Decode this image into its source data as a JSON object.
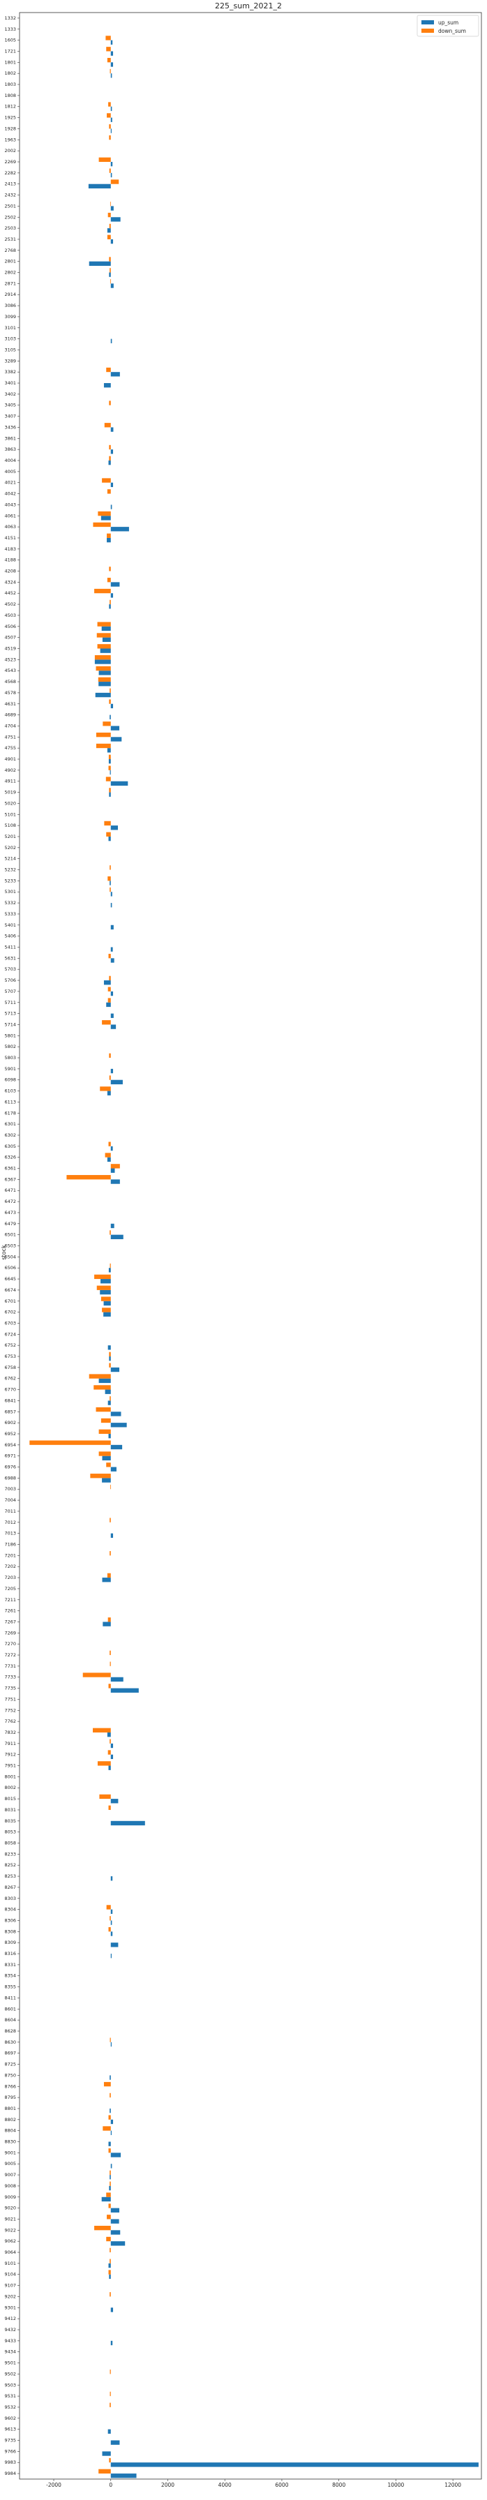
{
  "chart_data": {
    "type": "bar",
    "orientation": "horizontal",
    "title": "225_sum_2021_2",
    "xlabel": "",
    "ylabel": "stock",
    "xlim": [
      -3200,
      13000
    ],
    "xticks": [
      -2000,
      0,
      2000,
      4000,
      6000,
      8000,
      10000,
      12000
    ],
    "grid": false,
    "legend_position": "top-right",
    "series": [
      {
        "name": "up_sum",
        "color": "#1f77b4"
      },
      {
        "name": "down_sum",
        "color": "#ff7f0e"
      }
    ],
    "categories": [
      "1332",
      "1333",
      "1605",
      "1721",
      "1801",
      "1802",
      "1803",
      "1808",
      "1812",
      "1925",
      "1928",
      "1963",
      "2002",
      "2269",
      "2282",
      "2413",
      "2432",
      "2501",
      "2502",
      "2503",
      "2531",
      "2768",
      "2801",
      "2802",
      "2871",
      "2914",
      "3086",
      "3099",
      "3101",
      "3103",
      "3105",
      "3289",
      "3382",
      "3401",
      "3402",
      "3405",
      "3407",
      "3436",
      "3861",
      "3863",
      "4004",
      "4005",
      "4021",
      "4042",
      "4043",
      "4061",
      "4063",
      "4151",
      "4183",
      "4188",
      "4208",
      "4324",
      "4452",
      "4502",
      "4503",
      "4506",
      "4507",
      "4519",
      "4523",
      "4543",
      "4568",
      "4578",
      "4631",
      "4689",
      "4704",
      "4751",
      "4755",
      "4901",
      "4902",
      "4911",
      "5019",
      "5020",
      "5101",
      "5108",
      "5201",
      "5202",
      "5214",
      "5232",
      "5233",
      "5301",
      "5332",
      "5333",
      "5401",
      "5406",
      "5411",
      "5631",
      "5703",
      "5706",
      "5707",
      "5711",
      "5713",
      "5714",
      "5801",
      "5802",
      "5803",
      "5901",
      "6098",
      "6103",
      "6113",
      "6178",
      "6301",
      "6302",
      "6305",
      "6326",
      "6361",
      "6367",
      "6471",
      "6472",
      "6473",
      "6479",
      "6501",
      "6503",
      "6504",
      "6506",
      "6645",
      "6674",
      "6701",
      "6702",
      "6703",
      "6724",
      "6752",
      "6753",
      "6758",
      "6762",
      "6770",
      "6841",
      "6857",
      "6902",
      "6952",
      "6954",
      "6971",
      "6976",
      "6988",
      "7003",
      "7004",
      "7011",
      "7012",
      "7013",
      "7186",
      "7201",
      "7202",
      "7203",
      "7205",
      "7211",
      "7261",
      "7267",
      "7269",
      "7270",
      "7272",
      "7731",
      "7733",
      "7735",
      "7751",
      "7752",
      "7762",
      "7832",
      "7911",
      "7912",
      "7951",
      "8001",
      "8002",
      "8015",
      "8031",
      "8035",
      "8053",
      "8058",
      "8233",
      "8252",
      "8253",
      "8267",
      "8303",
      "8304",
      "8306",
      "8308",
      "8309",
      "8316",
      "8331",
      "8354",
      "8355",
      "8411",
      "8601",
      "8604",
      "8628",
      "8630",
      "8697",
      "8725",
      "8750",
      "8766",
      "8795",
      "8801",
      "8802",
      "8804",
      "8830",
      "9001",
      "9005",
      "9007",
      "9008",
      "9009",
      "9020",
      "9021",
      "9022",
      "9062",
      "9064",
      "9101",
      "9104",
      "9107",
      "9202",
      "9301",
      "9412",
      "9432",
      "9433",
      "9434",
      "9501",
      "9502",
      "9503",
      "9531",
      "9532",
      "9602",
      "9613",
      "9735",
      "9766",
      "9983",
      "9984"
    ],
    "up_sum": [
      0,
      0,
      60,
      80,
      80,
      40,
      0,
      0,
      40,
      50,
      30,
      0,
      0,
      60,
      40,
      -780,
      0,
      100,
      340,
      -120,
      80,
      0,
      -760,
      -60,
      100,
      0,
      0,
      0,
      0,
      40,
      0,
      0,
      320,
      -240,
      0,
      0,
      0,
      90,
      0,
      80,
      -80,
      0,
      80,
      0,
      40,
      -340,
      640,
      -140,
      0,
      0,
      0,
      310,
      80,
      -60,
      0,
      -320,
      -290,
      -370,
      -560,
      -420,
      -430,
      -540,
      80,
      -40,
      300,
      380,
      -120,
      -70,
      -30,
      600,
      -60,
      0,
      0,
      250,
      -80,
      0,
      0,
      0,
      -40,
      50,
      40,
      0,
      100,
      0,
      70,
      120,
      0,
      -240,
      80,
      -160,
      100,
      180,
      0,
      0,
      0,
      80,
      420,
      -120,
      0,
      0,
      0,
      0,
      70,
      -120,
      140,
      320,
      0,
      0,
      0,
      120,
      440,
      0,
      0,
      -70,
      -360,
      -380,
      -250,
      -260,
      0,
      0,
      -100,
      -60,
      300,
      -420,
      -200,
      -100,
      360,
      560,
      -80,
      400,
      -300,
      200,
      -310,
      0,
      0,
      0,
      0,
      80,
      0,
      0,
      0,
      -300,
      0,
      0,
      0,
      -280,
      0,
      0,
      0,
      0,
      440,
      980,
      0,
      0,
      0,
      -120,
      80,
      80,
      -80,
      0,
      0,
      260,
      0,
      1200,
      0,
      0,
      0,
      0,
      60,
      0,
      0,
      60,
      40,
      60,
      260,
      30,
      0,
      0,
      0,
      0,
      0,
      0,
      0,
      30,
      0,
      0,
      -40,
      0,
      0,
      -40,
      80,
      30,
      -80,
      350,
      40,
      -40,
      -60,
      -320,
      300,
      290,
      330,
      500,
      0,
      -80,
      -60,
      0,
      0,
      80,
      0,
      0,
      60,
      0,
      0,
      0,
      0,
      0,
      0,
      0,
      -100,
      310,
      -300,
      12900,
      900
    ],
    "down_sum": [
      0,
      0,
      -180,
      -160,
      -120,
      -30,
      0,
      0,
      -90,
      -140,
      -60,
      -60,
      0,
      -420,
      -50,
      280,
      0,
      -20,
      -100,
      -50,
      -120,
      0,
      -60,
      -40,
      -20,
      0,
      0,
      0,
      0,
      0,
      0,
      0,
      -160,
      0,
      0,
      -60,
      0,
      -220,
      0,
      -60,
      -60,
      0,
      -310,
      -120,
      0,
      -450,
      -620,
      -140,
      0,
      0,
      -60,
      -120,
      -580,
      -40,
      0,
      -470,
      -490,
      -470,
      -560,
      -520,
      -440,
      -40,
      -60,
      0,
      -280,
      -510,
      -510,
      -70,
      -80,
      -170,
      -60,
      0,
      0,
      -230,
      -160,
      0,
      0,
      -40,
      -110,
      -40,
      0,
      0,
      0,
      0,
      0,
      -80,
      0,
      -60,
      -100,
      -100,
      0,
      -310,
      0,
      0,
      -60,
      0,
      -50,
      -380,
      0,
      0,
      0,
      0,
      -80,
      -200,
      320,
      -1550,
      0,
      0,
      0,
      0,
      -40,
      0,
      0,
      -30,
      -580,
      -490,
      -340,
      -310,
      0,
      0,
      0,
      -60,
      -60,
      -760,
      -600,
      -40,
      -520,
      -340,
      -420,
      -2850,
      -420,
      -160,
      -720,
      -20,
      0,
      0,
      -40,
      0,
      0,
      -40,
      0,
      -120,
      0,
      0,
      0,
      -100,
      0,
      0,
      -40,
      -30,
      -980,
      -80,
      0,
      0,
      0,
      -630,
      -40,
      -100,
      -460,
      0,
      0,
      -400,
      -80,
      0,
      0,
      0,
      0,
      0,
      0,
      0,
      0,
      -150,
      -40,
      -80,
      0,
      0,
      0,
      0,
      0,
      0,
      0,
      0,
      0,
      -30,
      0,
      0,
      0,
      -240,
      -40,
      0,
      -80,
      -280,
      0,
      -80,
      0,
      -40,
      -40,
      -160,
      -80,
      -140,
      -580,
      -160,
      -40,
      -40,
      -80,
      0,
      -40,
      0,
      0,
      0,
      0,
      0,
      0,
      -30,
      0,
      -30,
      -40,
      0,
      0,
      0,
      0,
      -60,
      -430,
      -460,
      0,
      1000,
      -40
    ]
  }
}
